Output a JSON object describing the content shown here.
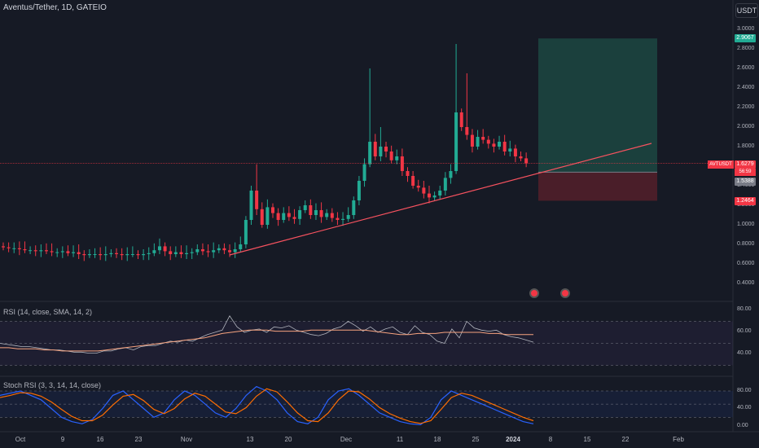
{
  "header": {
    "title": "Aventus/Tether, 1D, GATEIO",
    "currency": "USDT"
  },
  "colors": {
    "up": "#22ab94",
    "down": "#f23645",
    "trendline": "#f7525f",
    "profit_zone": "#1e4d45",
    "loss_zone": "#53202a",
    "rsi_line": "#b2b5be",
    "rsi_ma": "#f7a37f",
    "stoch_k": "#2962ff",
    "stoch_d": "#ff6d00"
  },
  "price_axis": {
    "ticks": [
      "3.0000",
      "2.8000",
      "2.6000",
      "2.4000",
      "2.2000",
      "2.0000",
      "1.8000",
      "1.4000",
      "1.2000",
      "1.0000",
      "0.8000",
      "0.6000",
      "0.4000"
    ]
  },
  "price_tags": {
    "take_profit": "2.9067",
    "last_price": "1.6279",
    "countdown": "56:59",
    "entry": "1.5388",
    "stop_loss": "1.2464",
    "ticker": "AVTUSDT"
  },
  "rsi_pane": {
    "title": "RSI (14, close, SMA, 14, 2)",
    "ticks": [
      "80.00",
      "60.00",
      "40.00"
    ]
  },
  "stoch_pane": {
    "title": "Stoch RSI (3, 3, 14, 14, close)",
    "ticks": [
      "80.00",
      "40.00",
      "0.00"
    ]
  },
  "time_axis": {
    "labels": [
      {
        "text": "Oct",
        "bold": false
      },
      {
        "text": "9",
        "bold": false
      },
      {
        "text": "16",
        "bold": false
      },
      {
        "text": "23",
        "bold": false
      },
      {
        "text": "Nov",
        "bold": false
      },
      {
        "text": "13",
        "bold": false
      },
      {
        "text": "20",
        "bold": false
      },
      {
        "text": "Dec",
        "bold": false
      },
      {
        "text": "11",
        "bold": false
      },
      {
        "text": "18",
        "bold": false
      },
      {
        "text": "25",
        "bold": false
      },
      {
        "text": "2024",
        "bold": true
      },
      {
        "text": "8",
        "bold": false
      },
      {
        "text": "15",
        "bold": false
      },
      {
        "text": "22",
        "bold": false
      },
      {
        "text": "Feb",
        "bold": false
      }
    ]
  },
  "chart_data": {
    "type": "candlestick",
    "symbol": "AVTUSDT",
    "timeframe": "1D",
    "ylim": [
      0.3,
      3.1
    ],
    "candles_close_approx": [
      0.77,
      0.76,
      0.76,
      0.75,
      0.74,
      0.74,
      0.73,
      0.74,
      0.73,
      0.72,
      0.72,
      0.73,
      0.71,
      0.72,
      0.7,
      0.69,
      0.7,
      0.7,
      0.69,
      0.7,
      0.71,
      0.7,
      0.69,
      0.7,
      0.7,
      0.69,
      0.7,
      0.71,
      0.74,
      0.78,
      0.73,
      0.7,
      0.72,
      0.7,
      0.71,
      0.72,
      0.75,
      0.73,
      0.72,
      0.74,
      0.76,
      0.74,
      0.72,
      0.75,
      0.8,
      1.05,
      1.35,
      1.16,
      1.0,
      1.18,
      1.12,
      1.05,
      1.12,
      1.08,
      1.06,
      1.15,
      1.2,
      1.1,
      1.15,
      1.08,
      1.12,
      1.07,
      1.05,
      1.06,
      1.1,
      1.25,
      1.45,
      1.62,
      1.85,
      1.7,
      1.8,
      1.75,
      1.66,
      1.7,
      1.55,
      1.5,
      1.4,
      1.38,
      1.32,
      1.28,
      1.3,
      1.35,
      1.48,
      1.55,
      2.15,
      2.0,
      1.92,
      1.8,
      1.9,
      1.87,
      1.83,
      1.8,
      1.85,
      1.75,
      1.78,
      1.7,
      1.68,
      1.63
    ],
    "rsi_approx": [
      50,
      49,
      48,
      47,
      47,
      46,
      45,
      44,
      44,
      43,
      42,
      42,
      41,
      41,
      43,
      43,
      45,
      46,
      44,
      47,
      48,
      48,
      50,
      52,
      51,
      53,
      52,
      55,
      58,
      60,
      62,
      75,
      65,
      60,
      62,
      63,
      60,
      65,
      64,
      66,
      62,
      60,
      58,
      57,
      59,
      63,
      65,
      70,
      66,
      61,
      65,
      60,
      63,
      65,
      60,
      58,
      66,
      60,
      58,
      52,
      50,
      63,
      55,
      70,
      64,
      62,
      61,
      62,
      58,
      56,
      55,
      53,
      51
    ],
    "rsi_ma_approx": [
      46,
      46,
      45,
      45,
      45,
      44,
      44,
      43,
      43,
      43,
      43,
      43,
      44,
      45,
      46,
      47,
      48,
      49,
      50,
      51,
      52,
      53,
      54,
      55,
      57,
      59,
      60,
      61,
      62,
      62,
      62,
      61,
      61,
      61,
      61,
      62,
      62,
      62,
      62,
      62,
      62,
      62,
      61,
      60,
      59,
      58,
      58,
      59,
      59,
      59,
      60,
      60,
      60,
      60,
      60,
      59,
      59,
      58,
      58,
      58,
      58
    ],
    "stoch_k_approx": [
      70,
      75,
      80,
      70,
      60,
      40,
      20,
      10,
      5,
      15,
      40,
      70,
      80,
      60,
      40,
      20,
      30,
      60,
      80,
      70,
      50,
      30,
      20,
      40,
      70,
      90,
      80,
      60,
      30,
      10,
      5,
      20,
      60,
      80,
      85,
      70,
      50,
      30,
      20,
      10,
      5,
      3,
      20,
      60,
      80,
      70,
      60,
      50,
      40,
      30,
      20,
      10,
      5
    ],
    "stoch_d_approx": [
      65,
      70,
      76,
      75,
      68,
      55,
      38,
      22,
      12,
      12,
      25,
      48,
      68,
      72,
      58,
      38,
      28,
      40,
      62,
      75,
      68,
      50,
      32,
      28,
      42,
      68,
      85,
      78,
      55,
      30,
      12,
      10,
      30,
      60,
      80,
      78,
      62,
      42,
      28,
      18,
      10,
      6,
      12,
      38,
      65,
      75,
      70,
      60,
      50,
      40,
      30,
      20,
      12
    ],
    "trade_setup": {
      "entry": 1.5388,
      "take_profit": 2.9067,
      "stop_loss": 1.2464,
      "last_price": 1.6279
    }
  }
}
